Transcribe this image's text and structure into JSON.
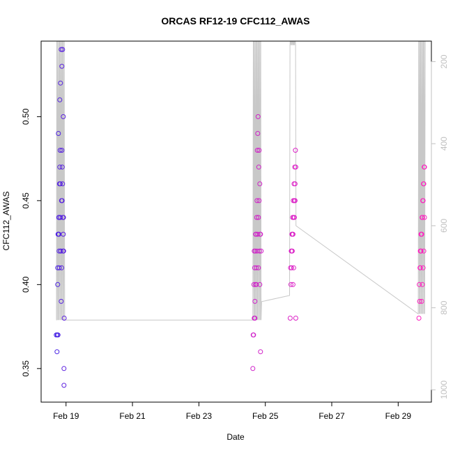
{
  "chart_data": {
    "type": "scatter",
    "title": "ORCAS RF12-19 CFC112_AWAS",
    "xlabel": "Date",
    "ylabel": "CFC112_AWAS",
    "x_ticks": [
      "Feb 19",
      "Feb 21",
      "Feb 23",
      "Feb 25",
      "Feb 27",
      "Feb 29"
    ],
    "y_ticks": [
      "0.35",
      "0.40",
      "0.45",
      "0.50"
    ],
    "y2_ticks": [
      "200",
      "400",
      "600",
      "800",
      "1000"
    ],
    "xlim": [
      "2016-02-18 06:00",
      "2016-03-01 00:00"
    ],
    "ylim": [
      0.33,
      0.545
    ],
    "y2lim": [
      1030,
      150
    ],
    "y2_reversed": true,
    "grid": false,
    "colors": {
      "series_start": "#3b22e6",
      "series_end": "#ff1fbf",
      "pressure_line": "#c8c8c8",
      "axis": "#000000",
      "right_axis": "#c0c0c0"
    },
    "series": [
      {
        "x": [
          "2016-02-18 17:00",
          "2016-02-18 17:30",
          "2016-02-18 18:00",
          "2016-02-18 18:30",
          "2016-02-18 19:00",
          "2016-02-18 19:30",
          "2016-02-18 20:00",
          "2016-02-18 20:30",
          "2016-02-18 21:00",
          "2016-02-18 21:30",
          "2016-02-18 22:00",
          "2016-02-18 22:30",
          "2016-02-18 17:45",
          "2016-02-18 18:15",
          "2016-02-18 18:45",
          "2016-02-18 19:15",
          "2016-02-18 19:45",
          "2016-02-18 20:15",
          "2016-02-18 20:45",
          "2016-02-18 21:15",
          "2016-02-18 21:45",
          "2016-02-18 22:15",
          "2016-02-18 18:00",
          "2016-02-18 19:00",
          "2016-02-18 20:00",
          "2016-02-18 21:00",
          "2016-02-18 22:00",
          "2016-02-18 18:30",
          "2016-02-18 19:30",
          "2016-02-18 20:30",
          "2016-02-18 21:30",
          "2016-02-18 22:30",
          "2016-02-18 18:10",
          "2016-02-18 19:10",
          "2016-02-18 20:10",
          "2016-02-18 21:10",
          "2016-02-18 22:10",
          "2016-02-18 18:50",
          "2016-02-18 19:50",
          "2016-02-18 20:50",
          "2016-02-18 21:50",
          "2016-02-18 22:40"
        ],
        "y": [
          0.37,
          0.36,
          0.41,
          0.43,
          0.44,
          0.47,
          0.52,
          0.54,
          0.53,
          0.54,
          0.5,
          0.35,
          0.37,
          0.43,
          0.44,
          0.46,
          0.48,
          0.42,
          0.45,
          0.47,
          0.44,
          0.42,
          0.4,
          0.42,
          0.44,
          0.48,
          0.43,
          0.49,
          0.51,
          0.39,
          0.46,
          0.34,
          0.37,
          0.41,
          0.42,
          0.45,
          0.44,
          0.43,
          0.46,
          0.41,
          0.42,
          0.38
        ]
      },
      {
        "x": [
          "2016-02-24 15:00",
          "2016-02-24 15:30",
          "2016-02-24 16:00",
          "2016-02-24 16:30",
          "2016-02-24 17:00",
          "2016-02-24 17:30",
          "2016-02-24 18:00",
          "2016-02-24 18:30",
          "2016-02-24 19:00",
          "2016-02-24 19:30",
          "2016-02-24 20:00",
          "2016-02-24 20:30",
          "2016-02-24 21:00",
          "2016-02-24 15:15",
          "2016-02-24 15:45",
          "2016-02-24 16:15",
          "2016-02-24 16:45",
          "2016-02-24 17:15",
          "2016-02-24 17:45",
          "2016-02-24 18:15",
          "2016-02-24 18:45",
          "2016-02-24 19:15",
          "2016-02-24 19:45",
          "2016-02-24 20:15",
          "2016-02-24 16:00",
          "2016-02-24 17:00",
          "2016-02-24 18:00",
          "2016-02-24 19:00",
          "2016-02-24 20:00",
          "2016-02-24 16:30",
          "2016-02-24 17:30",
          "2016-02-24 18:30",
          "2016-02-24 19:30",
          "2016-02-24 20:30"
        ],
        "y": [
          0.35,
          0.37,
          0.38,
          0.39,
          0.4,
          0.41,
          0.42,
          0.43,
          0.44,
          0.45,
          0.46,
          0.43,
          0.42,
          0.37,
          0.4,
          0.41,
          0.42,
          0.43,
          0.44,
          0.48,
          0.5,
          0.47,
          0.42,
          0.43,
          0.42,
          0.43,
          0.45,
          0.41,
          0.4,
          0.38,
          0.4,
          0.49,
          0.48,
          0.36
        ]
      },
      {
        "x": [
          "2016-02-25 18:00",
          "2016-02-25 18:30",
          "2016-02-25 19:00",
          "2016-02-25 19:30",
          "2016-02-25 20:00",
          "2016-02-25 20:30",
          "2016-02-25 21:00",
          "2016-02-25 21:30",
          "2016-02-25 22:00",
          "2016-02-25 18:15",
          "2016-02-25 18:45",
          "2016-02-25 19:15",
          "2016-02-25 19:45",
          "2016-02-25 20:15",
          "2016-02-25 20:45",
          "2016-02-25 21:15",
          "2016-02-25 21:45",
          "2016-02-25 19:00",
          "2016-02-25 20:00",
          "2016-02-25 21:00",
          "2016-02-25 22:00",
          "2016-02-25 19:30",
          "2016-02-25 20:30",
          "2016-02-25 21:30"
        ],
        "y": [
          0.38,
          0.4,
          0.41,
          0.42,
          0.43,
          0.44,
          0.45,
          0.46,
          0.47,
          0.41,
          0.42,
          0.43,
          0.44,
          0.45,
          0.46,
          0.47,
          0.48,
          0.42,
          0.4,
          0.44,
          0.38,
          0.43,
          0.41,
          0.45
        ]
      },
      {
        "x": [
          "2016-02-29 15:00",
          "2016-02-29 15:30",
          "2016-02-29 16:00",
          "2016-02-29 16:30",
          "2016-02-29 17:00",
          "2016-02-29 17:30",
          "2016-02-29 18:00",
          "2016-02-29 18:30",
          "2016-02-29 19:00",
          "2016-02-29 15:15",
          "2016-02-29 15:45",
          "2016-02-29 16:15",
          "2016-02-29 16:45",
          "2016-02-29 17:15",
          "2016-02-29 17:45",
          "2016-02-29 18:15",
          "2016-02-29 18:45",
          "2016-02-29 16:00",
          "2016-02-29 17:00",
          "2016-02-29 18:00",
          "2016-02-29 19:00",
          "2016-02-29 16:30",
          "2016-02-29 17:30",
          "2016-02-29 18:30"
        ],
        "y": [
          0.38,
          0.39,
          0.41,
          0.42,
          0.43,
          0.44,
          0.45,
          0.46,
          0.47,
          0.4,
          0.41,
          0.42,
          0.43,
          0.44,
          0.45,
          0.46,
          0.47,
          0.42,
          0.39,
          0.41,
          0.44,
          0.43,
          0.4,
          0.42
        ]
      }
    ],
    "pressure_line": {
      "x": [
        "2016-02-18 17:00",
        "2016-02-18 17:05",
        "2016-02-18 17:20",
        "2016-02-18 17:40",
        "2016-02-18 18:00",
        "2016-02-18 18:20",
        "2016-02-18 18:40",
        "2016-02-18 19:00",
        "2016-02-18 19:20",
        "2016-02-18 19:40",
        "2016-02-18 20:00",
        "2016-02-18 20:20",
        "2016-02-18 20:40",
        "2016-02-18 21:00",
        "2016-02-18 21:20",
        "2016-02-18 21:40",
        "2016-02-18 22:00",
        "2016-02-18 22:20",
        "2016-02-18 22:40",
        "2016-02-18 23:00",
        "2016-02-24 15:00",
        "2016-02-24 15:20",
        "2016-02-24 15:40",
        "2016-02-24 16:00",
        "2016-02-24 16:20",
        "2016-02-24 16:40",
        "2016-02-24 17:00",
        "2016-02-24 17:20",
        "2016-02-24 17:40",
        "2016-02-24 18:00",
        "2016-02-24 18:20",
        "2016-02-24 18:40",
        "2016-02-24 19:00",
        "2016-02-24 19:20",
        "2016-02-24 19:40",
        "2016-02-24 20:00",
        "2016-02-24 20:20",
        "2016-02-24 20:40",
        "2016-02-24 21:00",
        "2016-02-24 21:20",
        "2016-02-25 17:30",
        "2016-02-25 17:50",
        "2016-02-25 18:10",
        "2016-02-25 18:30",
        "2016-02-25 18:50",
        "2016-02-25 19:10",
        "2016-02-25 19:30",
        "2016-02-25 19:50",
        "2016-02-25 20:10",
        "2016-02-25 20:30",
        "2016-02-25 20:50",
        "2016-02-25 21:10",
        "2016-02-25 21:30",
        "2016-02-25 21:50",
        "2016-02-25 22:10",
        "2016-02-29 14:30",
        "2016-02-29 14:50",
        "2016-02-29 15:10",
        "2016-02-29 15:30",
        "2016-02-29 15:50",
        "2016-02-29 16:10",
        "2016-02-29 16:30",
        "2016-02-29 16:50",
        "2016-02-29 17:10",
        "2016-02-29 17:30",
        "2016-02-29 17:50",
        "2016-02-29 18:10",
        "2016-02-29 18:30",
        "2016-02-29 18:50",
        "2016-02-29 19:10",
        "2016-02-29 19:30"
      ],
      "y": [
        830,
        830,
        130,
        830,
        130,
        830,
        130,
        830,
        130,
        830,
        130,
        830,
        130,
        830,
        130,
        830,
        130,
        830,
        130,
        830,
        830,
        130,
        830,
        130,
        830,
        130,
        830,
        130,
        830,
        130,
        830,
        130,
        830,
        130,
        830,
        130,
        830,
        130,
        830,
        785,
        770,
        160,
        130,
        160,
        130,
        160,
        130,
        160,
        130,
        160,
        130,
        160,
        130,
        160,
        600,
        815,
        130,
        815,
        130,
        815,
        130,
        815,
        130,
        815,
        130,
        815,
        130,
        815,
        130,
        815,
        130
      ]
    }
  }
}
